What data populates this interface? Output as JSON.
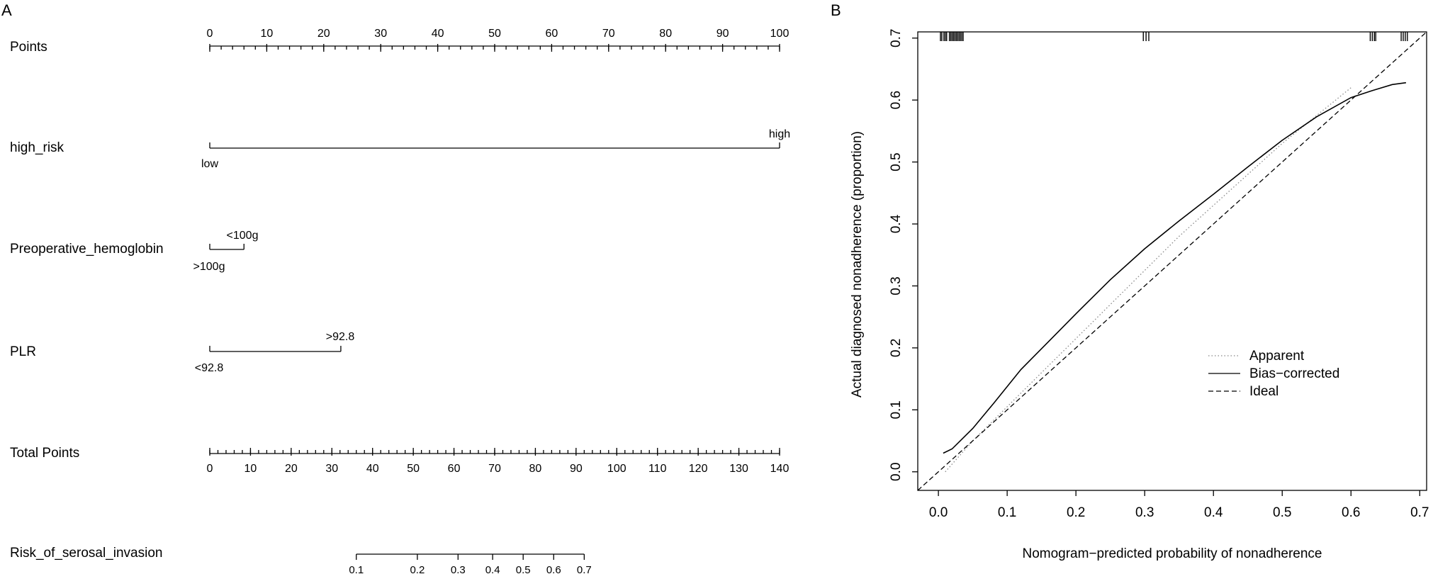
{
  "panel_a": {
    "label": "A"
  },
  "panel_b": {
    "label": "B"
  },
  "chart_data": [
    {
      "type": "nomogram",
      "points_scale": {
        "label": "Points",
        "range": [
          0,
          100
        ],
        "ticks": [
          0,
          10,
          20,
          30,
          40,
          50,
          60,
          70,
          80,
          90,
          100
        ],
        "minor_step": 2
      },
      "variables": [
        {
          "name": "high_risk",
          "levels": [
            {
              "label": "low",
              "points": 0
            },
            {
              "label": "high",
              "points": 100
            }
          ]
        },
        {
          "name": "Preoperative_hemoglobin",
          "levels": [
            {
              "label": ">100g",
              "points": 0
            },
            {
              "label": "<100g",
              "points": 6
            }
          ]
        },
        {
          "name": "PLR",
          "levels": [
            {
              "label": "<92.8",
              "points": 0
            },
            {
              "label": ">92.8",
              "points": 23
            }
          ]
        }
      ],
      "total_points": {
        "label": "Total Points",
        "range": [
          0,
          140
        ],
        "ticks": [
          0,
          10,
          20,
          30,
          40,
          50,
          60,
          70,
          80,
          90,
          100,
          110,
          120,
          130,
          140
        ],
        "minor_step": 2
      },
      "risk_scale": {
        "label": "Risk_of_serosal_invasion",
        "ticks": [
          {
            "value": "0.1",
            "total_points": 36
          },
          {
            "value": "0.2",
            "total_points": 51
          },
          {
            "value": "0.3",
            "total_points": 61
          },
          {
            "value": "0.4",
            "total_points": 69.5
          },
          {
            "value": "0.5",
            "total_points": 77
          },
          {
            "value": "0.6",
            "total_points": 84.5
          },
          {
            "value": "0.7",
            "total_points": 92
          }
        ]
      }
    },
    {
      "type": "line",
      "xlabel": "Nomogram−predicted probability of nonadherence",
      "ylabel": "Actual diagnosed nonadherence (proportion)",
      "xlim": [
        -0.03,
        0.71
      ],
      "ylim": [
        -0.03,
        0.71
      ],
      "xticks": [
        "0.0",
        "0.1",
        "0.2",
        "0.3",
        "0.4",
        "0.5",
        "0.6",
        "0.7"
      ],
      "yticks": [
        "0.0",
        "0.1",
        "0.2",
        "0.3",
        "0.4",
        "0.5",
        "0.6",
        "0.7"
      ],
      "legend_position": "bottom-right",
      "series": [
        {
          "name": "Apparent",
          "style": "dotted",
          "color": "#888888",
          "x": [
            0.01,
            0.05,
            0.1,
            0.15,
            0.2,
            0.25,
            0.3,
            0.35,
            0.4,
            0.45,
            0.5,
            0.55,
            0.6
          ],
          "y": [
            0.0,
            0.05,
            0.105,
            0.16,
            0.215,
            0.27,
            0.325,
            0.38,
            0.43,
            0.48,
            0.53,
            0.575,
            0.62
          ]
        },
        {
          "name": "Bias−corrected",
          "style": "solid",
          "color": "#000000",
          "x": [
            0.007,
            0.02,
            0.05,
            0.08,
            0.12,
            0.16,
            0.2,
            0.25,
            0.3,
            0.35,
            0.4,
            0.45,
            0.5,
            0.55,
            0.6,
            0.63,
            0.66,
            0.68
          ],
          "y": [
            0.03,
            0.037,
            0.07,
            0.11,
            0.165,
            0.21,
            0.255,
            0.31,
            0.36,
            0.405,
            0.448,
            0.492,
            0.535,
            0.573,
            0.604,
            0.615,
            0.625,
            0.628
          ]
        },
        {
          "name": "Ideal",
          "style": "dashed",
          "color": "#000000",
          "x": [
            -0.03,
            0.71
          ],
          "y": [
            -0.03,
            0.71
          ]
        }
      ],
      "rug": [
        0.003,
        0.005,
        0.008,
        0.01,
        0.012,
        0.016,
        0.018,
        0.02,
        0.022,
        0.024,
        0.026,
        0.028,
        0.03,
        0.032,
        0.034,
        0.036,
        0.298,
        0.302,
        0.306,
        0.628,
        0.631,
        0.634,
        0.636,
        0.673,
        0.676,
        0.679,
        0.682
      ]
    }
  ]
}
